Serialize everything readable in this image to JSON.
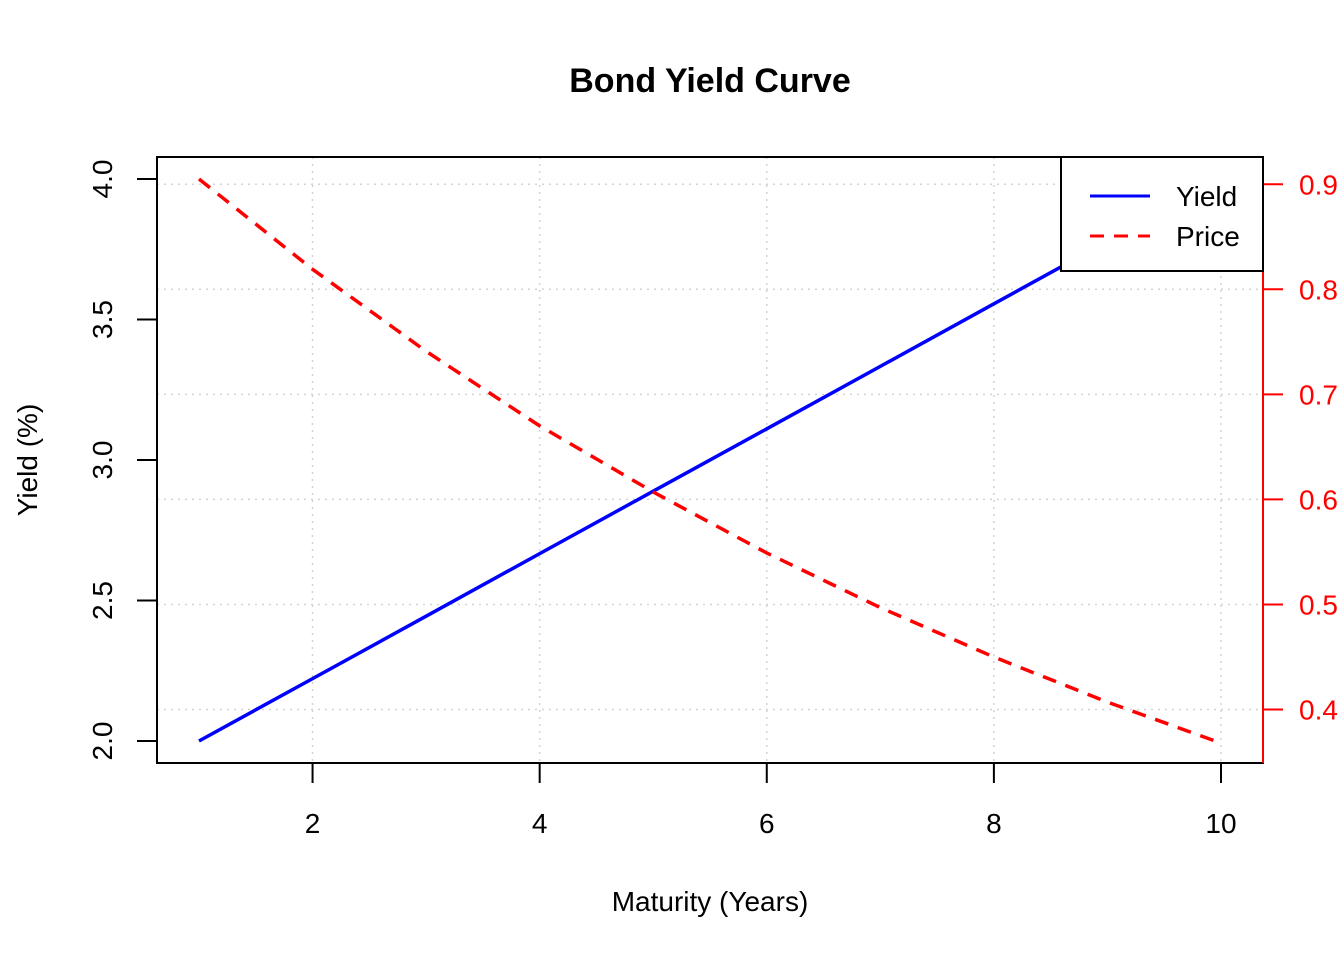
{
  "chart_data": {
    "type": "line",
    "title": "Bond Yield Curve",
    "xlabel": "Maturity (Years)",
    "ylabel": "Yield (%)",
    "y2label": "",
    "x": [
      1,
      2,
      3,
      4,
      5,
      6,
      7,
      8,
      9,
      10
    ],
    "xlim": [
      1,
      10
    ],
    "xticks": [
      "2",
      "4",
      "6",
      "8",
      "10"
    ],
    "ylim": [
      2.0,
      4.0
    ],
    "yticks": [
      "2.0",
      "2.5",
      "3.0",
      "3.5",
      "4.0"
    ],
    "y2lim": [
      0.37,
      0.905
    ],
    "y2ticks": [
      "0.4",
      "0.5",
      "0.6",
      "0.7",
      "0.8",
      "0.9"
    ],
    "grid": true,
    "legend_position": "top-right",
    "series": [
      {
        "name": "Yield",
        "axis": "left",
        "color": "#0000ff",
        "line_style": "solid",
        "values": [
          2.0,
          2.222,
          2.444,
          2.667,
          2.889,
          3.111,
          3.333,
          3.556,
          3.778,
          4.0
        ]
      },
      {
        "name": "Price",
        "axis": "right",
        "color": "#ff0000",
        "line_style": "dashed",
        "values": [
          0.905,
          0.819,
          0.741,
          0.67,
          0.607,
          0.549,
          0.497,
          0.45,
          0.407,
          0.368
        ]
      }
    ]
  }
}
